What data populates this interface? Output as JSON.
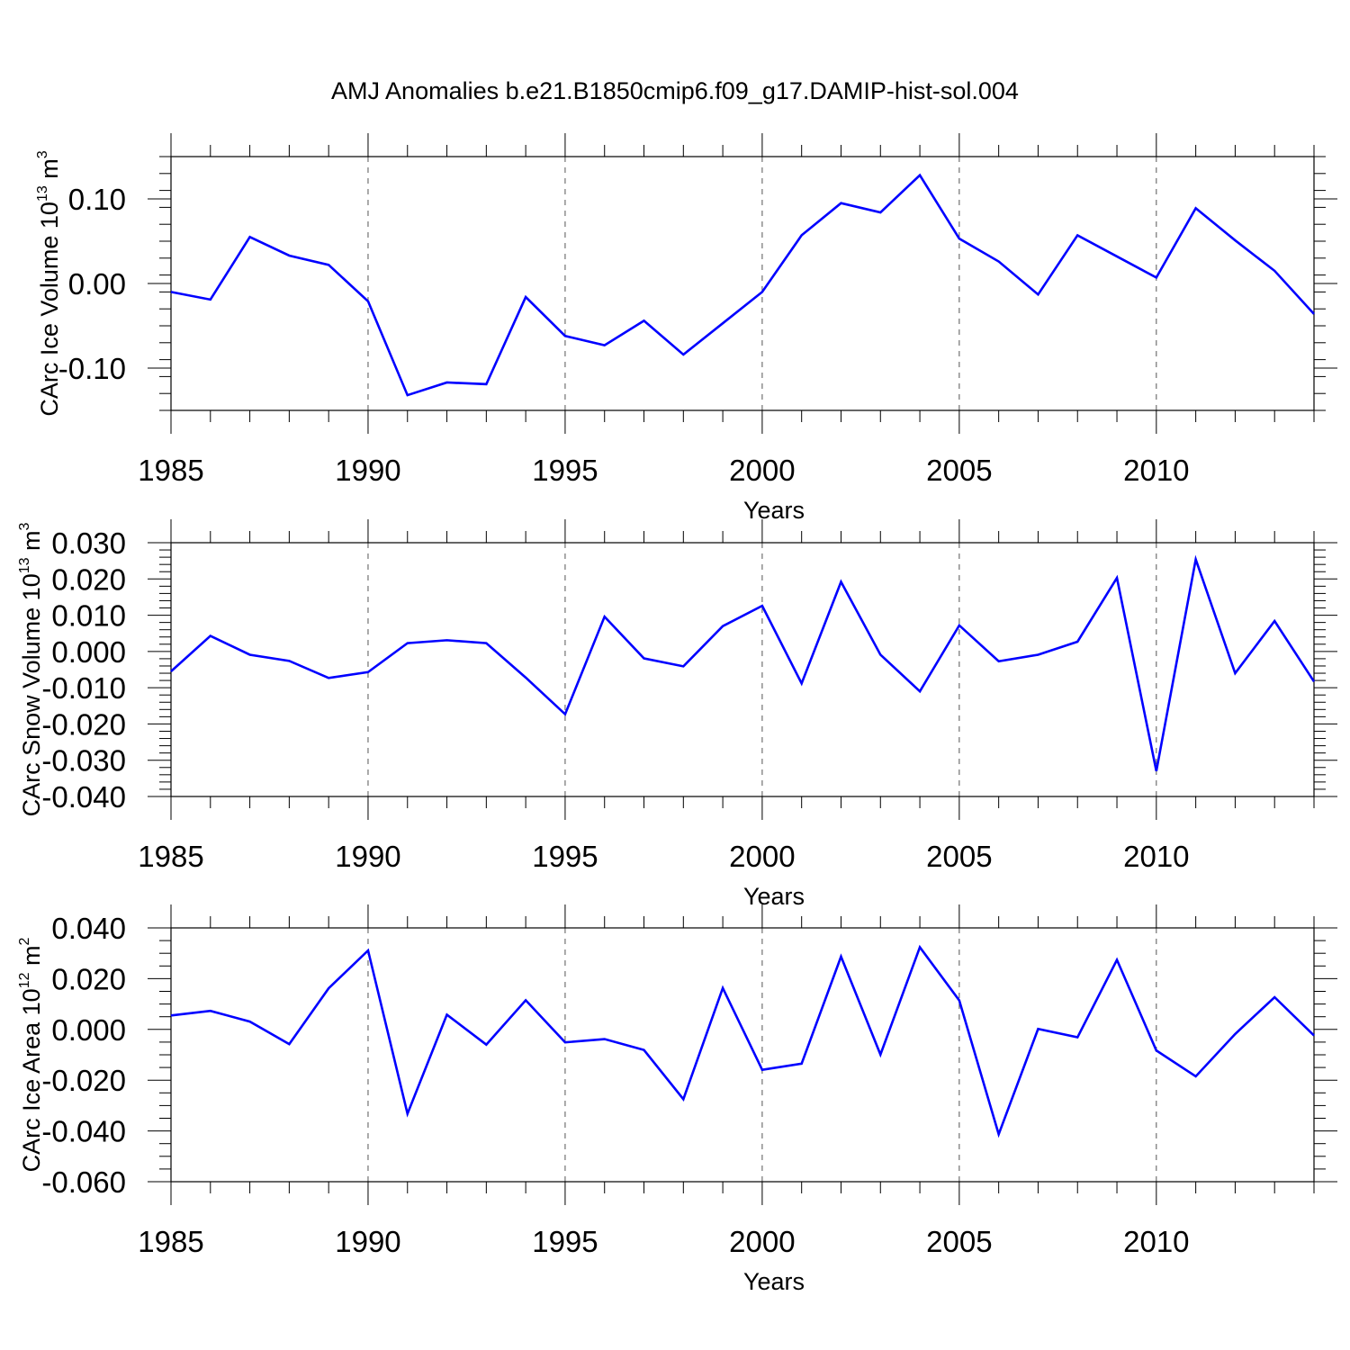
{
  "title": "AMJ Anomalies b.e21.B1850cmip6.f09_g17.DAMIP-hist-sol.004",
  "colors": {
    "series": "#0000ff",
    "axes": "#000000",
    "grid": "#555555"
  },
  "chart_data": [
    {
      "type": "line",
      "title": "",
      "ylabel": {
        "text": "CArc Ice Volume 10",
        "exponent": "13",
        "unit": " m",
        "unit_exponent": "3"
      },
      "xlabel": "Years",
      "xlim": [
        1985,
        2014
      ],
      "ylim": [
        -0.15,
        0.15
      ],
      "x_major_ticks": [
        1985,
        1990,
        1995,
        2000,
        2005,
        2010
      ],
      "x_tick_labels": [
        "1985",
        "1990",
        "1995",
        "2000",
        "2005",
        "2010"
      ],
      "y_major_ticks": [
        -0.1,
        0.0,
        0.1
      ],
      "y_tick_labels": [
        "-0.10",
        "0.00",
        "0.10"
      ],
      "y_minor_step": 0.02,
      "grid": "dashed vertical lines at x major ticks",
      "series": [
        {
          "x": [
            1985,
            1986,
            1987,
            1988,
            1989,
            1990,
            1991,
            1992,
            1993,
            1994,
            1995,
            1996,
            1997,
            1998,
            1999,
            2000,
            2001,
            2002,
            2003,
            2004,
            2005,
            2006,
            2007,
            2008,
            2009,
            2010,
            2011,
            2012,
            2013,
            2014
          ],
          "values": [
            -0.01,
            -0.019,
            0.055,
            0.033,
            0.022,
            -0.021,
            -0.132,
            -0.117,
            -0.119,
            -0.016,
            -0.062,
            -0.073,
            -0.044,
            -0.084,
            -0.047,
            -0.01,
            0.057,
            0.095,
            0.084,
            0.128,
            0.053,
            0.026,
            -0.013,
            0.057,
            0.032,
            0.007,
            0.089,
            0.051,
            0.015,
            -0.036
          ]
        }
      ]
    },
    {
      "type": "line",
      "title": "",
      "ylabel": {
        "text": "CArc Snow Volume 10",
        "exponent": "13",
        "unit": " m",
        "unit_exponent": "3"
      },
      "xlabel": "Years",
      "xlim": [
        1985,
        2014
      ],
      "ylim": [
        -0.04,
        0.03
      ],
      "x_major_ticks": [
        1985,
        1990,
        1995,
        2000,
        2005,
        2010
      ],
      "x_tick_labels": [
        "1985",
        "1990",
        "1995",
        "2000",
        "2005",
        "2010"
      ],
      "y_major_ticks": [
        -0.04,
        -0.03,
        -0.02,
        -0.01,
        0.0,
        0.01,
        0.02,
        0.03
      ],
      "y_tick_labels": [
        "-0.040",
        "-0.030",
        "-0.020",
        "-0.010",
        "0.000",
        "0.010",
        "0.020",
        "0.030"
      ],
      "y_minor_step": 0.002,
      "grid": "dashed vertical lines at x major ticks",
      "series": [
        {
          "x": [
            1985,
            1986,
            1987,
            1988,
            1989,
            1990,
            1991,
            1992,
            1993,
            1994,
            1995,
            1996,
            1997,
            1998,
            1999,
            2000,
            2001,
            2002,
            2003,
            2004,
            2005,
            2006,
            2007,
            2008,
            2009,
            2010,
            2011,
            2012,
            2013,
            2014
          ],
          "values": [
            -0.0055,
            0.0043,
            -0.0009,
            -0.0026,
            -0.0073,
            -0.0057,
            0.0023,
            0.0031,
            0.0023,
            -0.0072,
            -0.0173,
            0.0096,
            -0.0019,
            -0.0041,
            0.007,
            0.0126,
            -0.0088,
            0.0192,
            -0.0009,
            -0.011,
            0.0072,
            -0.0027,
            -0.0009,
            0.0027,
            0.0203,
            -0.033,
            0.0254,
            -0.006,
            0.0084,
            -0.0083
          ]
        }
      ]
    },
    {
      "type": "line",
      "title": "",
      "ylabel": {
        "text": "CArc Ice Area 10",
        "exponent": "12",
        "unit": " m",
        "unit_exponent": "2"
      },
      "xlabel": "Years",
      "xlim": [
        1985,
        2014
      ],
      "ylim": [
        -0.06,
        0.04
      ],
      "x_major_ticks": [
        1985,
        1990,
        1995,
        2000,
        2005,
        2010
      ],
      "x_tick_labels": [
        "1985",
        "1990",
        "1995",
        "2000",
        "2005",
        "2010"
      ],
      "y_major_ticks": [
        -0.06,
        -0.04,
        -0.02,
        0.0,
        0.02,
        0.04
      ],
      "y_tick_labels": [
        "-0.060",
        "-0.040",
        "-0.020",
        "0.000",
        "0.020",
        "0.040"
      ],
      "y_minor_step": 0.005,
      "grid": "dashed vertical lines at x major ticks",
      "series": [
        {
          "x": [
            1985,
            1986,
            1987,
            1988,
            1989,
            1990,
            1991,
            1992,
            1993,
            1994,
            1995,
            1996,
            1997,
            1998,
            1999,
            2000,
            2001,
            2002,
            2003,
            2004,
            2005,
            2006,
            2007,
            2008,
            2009,
            2010,
            2011,
            2012,
            2013,
            2014
          ],
          "values": [
            0.0055,
            0.0073,
            0.0031,
            -0.0058,
            0.0162,
            0.0311,
            -0.0332,
            0.0058,
            -0.006,
            0.0115,
            -0.0051,
            -0.0038,
            -0.0081,
            -0.0275,
            0.0163,
            -0.0159,
            -0.0135,
            0.0287,
            -0.0099,
            0.0324,
            0.0114,
            -0.0413,
            0.0002,
            -0.0031,
            0.0274,
            -0.0083,
            -0.0185,
            -0.0018,
            0.0127,
            -0.0024
          ]
        }
      ]
    }
  ]
}
